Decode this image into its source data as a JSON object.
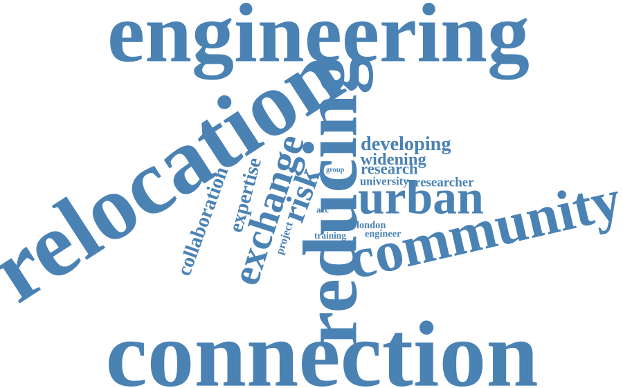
{
  "word_color": "#4a82b4",
  "background": "#ffffff",
  "words": [
    {
      "id": "engineering",
      "text": "engineering",
      "orientation": "horizontal"
    },
    {
      "id": "connection",
      "text": "connection",
      "orientation": "horizontal"
    },
    {
      "id": "relocation",
      "text": "relocation",
      "orientation": "diagonal"
    },
    {
      "id": "reducing",
      "text": "reducing",
      "orientation": "vertical"
    },
    {
      "id": "community",
      "text": "community",
      "orientation": "diagonal"
    },
    {
      "id": "urban",
      "text": "urban",
      "orientation": "horizontal"
    },
    {
      "id": "exchange",
      "text": "exchange",
      "orientation": "diagonal"
    },
    {
      "id": "risk",
      "text": "risk",
      "orientation": "diagonal"
    },
    {
      "id": "expertise",
      "text": "expertise",
      "orientation": "diagonal"
    },
    {
      "id": "collaboration",
      "text": "collaboration",
      "orientation": "diagonal"
    },
    {
      "id": "developing",
      "text": "developing",
      "orientation": "horizontal"
    },
    {
      "id": "widening",
      "text": "widening",
      "orientation": "horizontal"
    },
    {
      "id": "research",
      "text": "research",
      "orientation": "horizontal"
    },
    {
      "id": "university",
      "text": "university",
      "orientation": "horizontal"
    },
    {
      "id": "researcher",
      "text": "researcher",
      "orientation": "horizontal"
    },
    {
      "id": "london",
      "text": "london",
      "orientation": "horizontal"
    },
    {
      "id": "engineer",
      "text": "engineer",
      "orientation": "horizontal"
    },
    {
      "id": "training",
      "text": "training",
      "orientation": "horizontal"
    },
    {
      "id": "project",
      "text": "project",
      "orientation": "diagonal"
    },
    {
      "id": "group",
      "text": "group",
      "orientation": "horizontal"
    },
    {
      "id": "acc",
      "text": "acc",
      "orientation": "horizontal"
    }
  ]
}
